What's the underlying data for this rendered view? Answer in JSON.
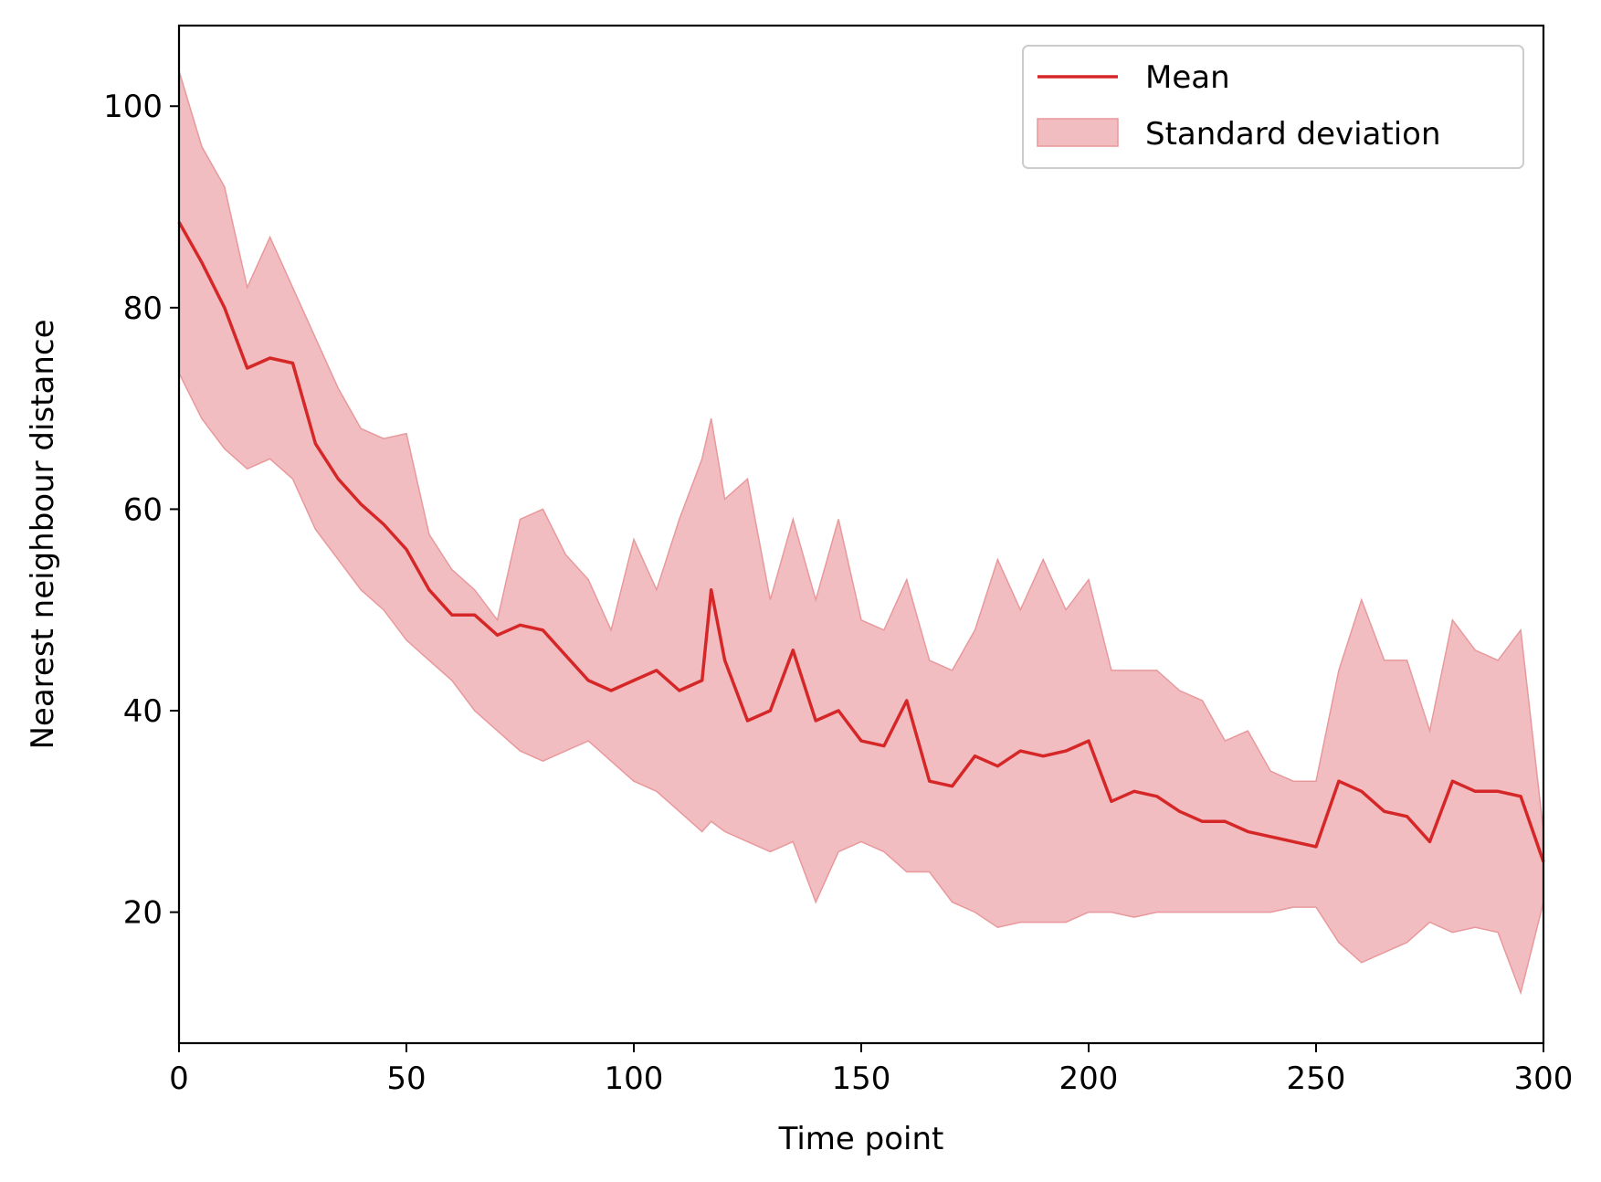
{
  "chart_data": {
    "type": "line",
    "title": "",
    "xlabel": "Time point",
    "ylabel": "Nearest neighbour distance",
    "xlim": [
      0,
      300
    ],
    "ylim": [
      7,
      108
    ],
    "xticks": [
      0,
      50,
      100,
      150,
      200,
      250,
      300
    ],
    "yticks": [
      20,
      40,
      60,
      80,
      100
    ],
    "grid": false,
    "legend_position": "top-right",
    "colors": {
      "mean": "#d62728",
      "band_fill": "#f1bdc0",
      "band_edge": "#e8999c"
    },
    "series": [
      {
        "name": "Mean",
        "x": [
          0,
          5,
          10,
          15,
          20,
          25,
          30,
          35,
          40,
          45,
          50,
          55,
          60,
          65,
          70,
          75,
          80,
          85,
          90,
          95,
          100,
          105,
          110,
          115,
          117,
          120,
          125,
          130,
          135,
          140,
          145,
          150,
          155,
          160,
          165,
          170,
          175,
          180,
          185,
          190,
          195,
          200,
          205,
          210,
          215,
          220,
          225,
          230,
          235,
          240,
          245,
          250,
          255,
          260,
          265,
          270,
          275,
          280,
          285,
          290,
          295,
          300
        ],
        "y": [
          88.5,
          84.5,
          80,
          74,
          75,
          74.5,
          66.5,
          63,
          60.5,
          58.5,
          56,
          52,
          49.5,
          49.5,
          47.5,
          48.5,
          48,
          45.5,
          43,
          42,
          43,
          44,
          42,
          43,
          52,
          45,
          39,
          40,
          46,
          39,
          40,
          37,
          36.5,
          41,
          33,
          32.5,
          35.5,
          34.5,
          36,
          35.5,
          36,
          37,
          31,
          32,
          31.5,
          30,
          29,
          29,
          28,
          27.5,
          27,
          26.5,
          33,
          32,
          30,
          29.5,
          27,
          33,
          32,
          32,
          31.5,
          25
        ]
      },
      {
        "name": "Standard deviation",
        "kind": "band",
        "x": [
          0,
          5,
          10,
          15,
          20,
          25,
          30,
          35,
          40,
          45,
          50,
          55,
          60,
          65,
          70,
          75,
          80,
          85,
          90,
          95,
          100,
          105,
          110,
          115,
          117,
          120,
          125,
          130,
          135,
          140,
          145,
          150,
          155,
          160,
          165,
          170,
          175,
          180,
          185,
          190,
          195,
          200,
          205,
          210,
          215,
          220,
          225,
          230,
          235,
          240,
          245,
          250,
          255,
          260,
          265,
          270,
          275,
          280,
          285,
          290,
          295,
          300
        ],
        "upper": [
          103.5,
          96,
          92,
          82,
          87,
          82,
          77,
          72,
          68,
          67,
          67.5,
          57.5,
          54,
          52,
          49,
          59,
          60,
          55.5,
          53,
          48,
          57,
          52,
          59,
          65,
          69,
          61,
          63,
          51,
          59,
          51,
          59,
          49,
          48,
          53,
          45,
          44,
          48,
          55,
          50,
          55,
          50,
          53,
          44,
          44,
          44,
          42,
          41,
          37,
          38,
          34,
          33,
          33,
          44,
          51,
          45,
          45,
          38,
          49,
          46,
          45,
          48,
          28
        ],
        "lower": [
          73.5,
          69,
          66,
          64,
          65,
          63,
          58,
          55,
          52,
          50,
          47,
          45,
          43,
          40,
          38,
          36,
          35,
          36,
          37,
          35,
          33,
          32,
          30,
          28,
          29,
          28,
          27,
          26,
          27,
          21,
          26,
          27,
          26,
          24,
          24,
          21,
          20,
          18.5,
          19,
          19,
          19,
          20,
          20,
          19.5,
          20,
          20,
          20,
          20,
          20,
          20,
          20.5,
          20.5,
          17,
          15,
          16,
          17,
          19,
          18,
          18.5,
          18,
          12,
          21
        ]
      }
    ]
  }
}
